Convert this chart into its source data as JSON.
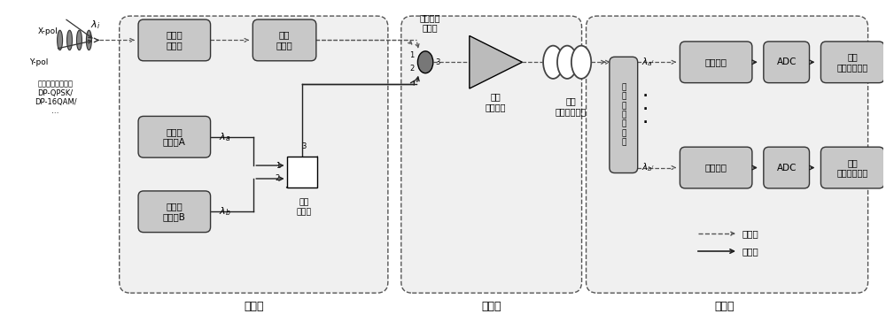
{
  "bg_color": "#ffffff",
  "fig_width": 10.0,
  "fig_height": 3.55,
  "dpi": 100,
  "box_fill": "#c8c8c8",
  "box_edge": "#333333",
  "section_fill": "#f0f0f0",
  "section_edge": "#555555",
  "label_第一级": "第一级",
  "label_中间级": "中间级",
  "label_第二级": "第二级",
  "label_光信号": "光信号",
  "label_电信号": "电信号",
  "label_窄带光滤波器": "窄带光\n滤波器",
  "label_偏振控制器": "偏振\n控制器",
  "label_可调谐激光器A": "可调谐\n激光器A",
  "label_可调谐激光器B": "可调谐\n激光器B",
  "label_保偏光放大器": "保偏\n光放大器",
  "label_保偏高非线性光纤": "保偏\n高非线性光纤",
  "label_偏振复用分束器": "偏\n振\n复\n用\n分\n束\n器",
  "label_相干检测1": "相干检测",
  "label_ADC1": "ADC",
  "label_数字信号处理单元1": "数字\n信号处理单元",
  "label_相干检测2": "相干检测",
  "label_ADC2": "ADC",
  "label_数字信号处理单元2": "数字\n信号处理单元",
  "label_超高速信号": "超高速相干光信号\nDP-QPSK/\nDP-16QAM/\n…",
  "label_X-pol": "X-pol",
  "label_Y-pol": "Y-pol",
  "label_保偏光纤耦合器": "保偏光纤\n耦合器",
  "label_偏振合束器": "偏振\n合束器"
}
